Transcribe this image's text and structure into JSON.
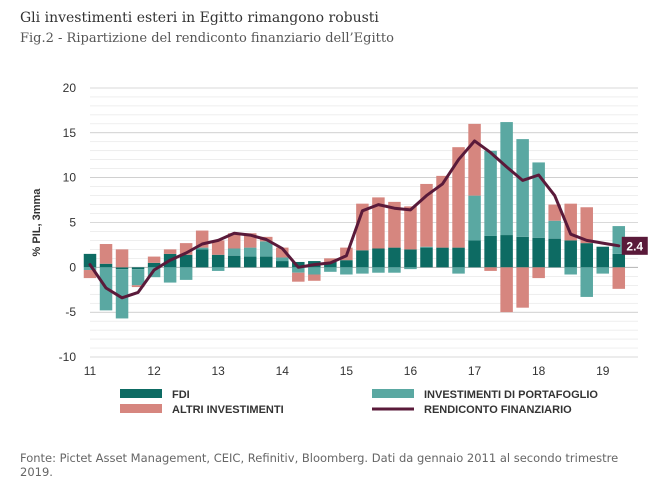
{
  "header": {
    "title": "Gli investimenti esteri in Egitto rimangono robusti",
    "subtitle": "Fig.2 - Ripartizione del rendiconto finanziario dell’Egitto"
  },
  "source": "Fonte: Pictet Asset Management, CEIC, Refinitiv, Bloomberg. Dati da gennaio 2011 al secondo trimestre 2019.",
  "chart_data": {
    "type": "bar",
    "title": "Gli investimenti esteri in Egitto rimangono robusti",
    "subtitle": "Fig.2 - Ripartizione del rendiconto finanziario dell’Egitto",
    "ylabel": "% PIL, 3mma",
    "ylim": [
      -10,
      20
    ],
    "yticks": [
      20,
      15,
      10,
      5,
      0,
      -5,
      -10
    ],
    "xlim": [
      2011,
      2019.55
    ],
    "xticks": [
      {
        "value": 2011,
        "label": "11"
      },
      {
        "value": 2012,
        "label": "12"
      },
      {
        "value": 2013,
        "label": "13"
      },
      {
        "value": 2014,
        "label": "14"
      },
      {
        "value": 2015,
        "label": "15"
      },
      {
        "value": 2016,
        "label": "16"
      },
      {
        "value": 2017,
        "label": "17"
      },
      {
        "value": 2018,
        "label": "18"
      },
      {
        "value": 2019,
        "label": "19"
      }
    ],
    "grid": true,
    "bar_mode": "stacked",
    "x": [
      2011.0,
      2011.25,
      2011.5,
      2011.75,
      2012.0,
      2012.25,
      2012.5,
      2012.75,
      2013.0,
      2013.25,
      2013.5,
      2013.75,
      2014.0,
      2014.25,
      2014.5,
      2014.75,
      2015.0,
      2015.25,
      2015.5,
      2015.75,
      2016.0,
      2016.25,
      2016.5,
      2016.75,
      2017.0,
      2017.25,
      2017.5,
      2017.75,
      2018.0,
      2018.25,
      2018.5,
      2018.75,
      2019.0,
      2019.25
    ],
    "series": [
      {
        "name": "FDI",
        "kind": "bar",
        "color": "#0d6b63",
        "values": [
          1.5,
          0.4,
          -0.2,
          -0.2,
          0.5,
          1.5,
          1.4,
          2.0,
          1.4,
          1.3,
          1.2,
          1.2,
          0.7,
          0.6,
          0.7,
          0.6,
          0.8,
          1.9,
          2.1,
          2.2,
          2.0,
          2.2,
          2.2,
          2.2,
          3.0,
          3.5,
          3.6,
          3.4,
          3.3,
          3.2,
          3.0,
          2.7,
          2.3,
          1.5
        ]
      },
      {
        "name": "INVESTIMENTI DI PORTAFOGLIO",
        "kind": "bar",
        "color": "#5aa8a2",
        "values": [
          -0.3,
          -4.8,
          -5.5,
          -1.8,
          -1.1,
          -1.7,
          -1.4,
          0.2,
          -0.4,
          0.8,
          1.0,
          1.7,
          0.4,
          -0.6,
          -0.8,
          -0.5,
          -0.8,
          -0.7,
          -0.6,
          -0.6,
          -0.2,
          0.1,
          0.0,
          -0.7,
          5.0,
          9.5,
          12.6,
          10.9,
          8.4,
          2.0,
          -0.8,
          -3.3,
          -0.7,
          3.1
        ]
      },
      {
        "name": "ALTRI INVESTIMENTI",
        "kind": "bar",
        "color": "#d6867f",
        "values": [
          -0.9,
          2.2,
          2.0,
          -0.2,
          0.7,
          0.5,
          1.3,
          1.9,
          1.6,
          1.7,
          1.6,
          0.5,
          1.1,
          -1.0,
          -0.7,
          0.4,
          1.4,
          5.2,
          5.7,
          5.1,
          4.8,
          7.0,
          8.0,
          11.2,
          8.0,
          -0.4,
          -5.0,
          -4.5,
          -1.2,
          1.8,
          4.1,
          4.0,
          0.0,
          -2.4
        ]
      },
      {
        "name": "RENDICONTO FINANZIARIO",
        "kind": "line",
        "color": "#5a1a3a",
        "values": [
          0.3,
          -2.3,
          -3.4,
          -2.8,
          -0.3,
          0.8,
          1.6,
          2.6,
          3.0,
          3.8,
          3.6,
          3.1,
          2.1,
          0.0,
          0.3,
          0.5,
          1.3,
          6.3,
          7.0,
          6.6,
          6.4,
          8.0,
          9.3,
          12.0,
          14.1,
          12.8,
          11.2,
          9.7,
          10.3,
          8.0,
          3.7,
          3.0,
          2.7,
          2.4
        ]
      }
    ],
    "end_label": {
      "series": "RENDICONTO FINANZIARIO",
      "text": "2.4"
    },
    "legend": {
      "position": "bottom",
      "entries": [
        {
          "series": "FDI"
        },
        {
          "series": "INVESTIMENTI DI PORTAFOGLIO"
        },
        {
          "series": "ALTRI INVESTIMENTI"
        },
        {
          "series": "RENDICONTO FINANZIARIO"
        }
      ]
    }
  },
  "colors": {
    "grid": "#b3b3b3",
    "axis_text": "#333333"
  }
}
